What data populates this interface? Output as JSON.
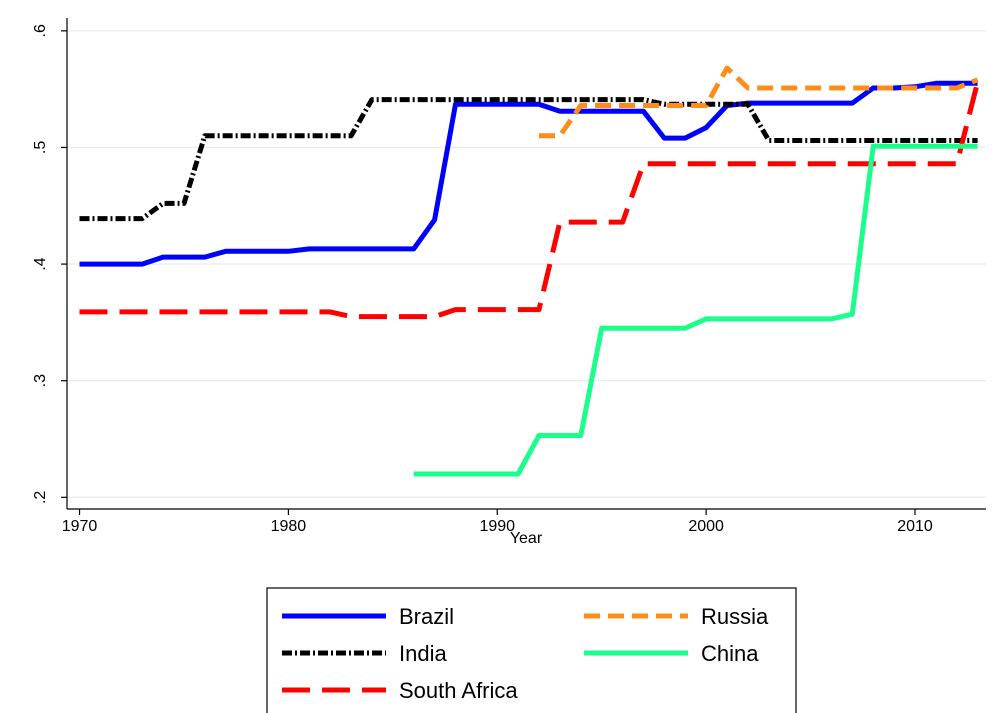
{
  "chart_data": {
    "type": "line",
    "title": "",
    "xlabel": "Year",
    "ylabel": "",
    "xlim": [
      1969.4,
      2013.4
    ],
    "ylim": [
      0.19,
      0.611
    ],
    "x_ticks": [
      1970,
      1980,
      1990,
      2000,
      2010
    ],
    "x_tick_labels": [
      "1970",
      "1980",
      "1990",
      "2000",
      "2010"
    ],
    "y_ticks": [
      0.2,
      0.3,
      0.4,
      0.5,
      0.6
    ],
    "y_tick_labels": [
      ".2",
      ".3",
      ".4",
      ".5",
      ".6"
    ],
    "grid": "horizontal",
    "legend_position": "bottom",
    "series": [
      {
        "name": "Brazil",
        "color": "#0000ff",
        "dash": "solid",
        "x": [
          1970,
          1971,
          1972,
          1973,
          1974,
          1975,
          1976,
          1977,
          1978,
          1979,
          1980,
          1981,
          1982,
          1983,
          1984,
          1985,
          1986,
          1987,
          1988,
          1989,
          1990,
          1991,
          1992,
          1993,
          1994,
          1995,
          1996,
          1997,
          1998,
          1999,
          2000,
          2001,
          2002,
          2003,
          2004,
          2005,
          2006,
          2007,
          2008,
          2009,
          2010,
          2011,
          2012,
          2013
        ],
        "y": [
          0.4,
          0.4,
          0.4,
          0.4,
          0.406,
          0.406,
          0.406,
          0.411,
          0.411,
          0.411,
          0.411,
          0.413,
          0.413,
          0.413,
          0.413,
          0.413,
          0.413,
          0.438,
          0.537,
          0.537,
          0.537,
          0.537,
          0.537,
          0.531,
          0.531,
          0.531,
          0.531,
          0.531,
          0.508,
          0.508,
          0.517,
          0.536,
          0.538,
          0.538,
          0.538,
          0.538,
          0.538,
          0.538,
          0.551,
          0.551,
          0.552,
          0.555,
          0.555,
          0.555
        ]
      },
      {
        "name": "India",
        "color": "#000000",
        "dash": "dashdot",
        "x": [
          1970,
          1971,
          1972,
          1973,
          1974,
          1975,
          1976,
          1977,
          1978,
          1979,
          1980,
          1981,
          1982,
          1983,
          1984,
          1985,
          1986,
          1987,
          1988,
          1989,
          1990,
          1991,
          1992,
          1993,
          1994,
          1995,
          1996,
          1997,
          1998,
          1999,
          2000,
          2001,
          2002,
          2003,
          2004,
          2005,
          2006,
          2007,
          2008,
          2009,
          2010,
          2011,
          2012,
          2013
        ],
        "y": [
          0.439,
          0.439,
          0.439,
          0.439,
          0.452,
          0.452,
          0.51,
          0.51,
          0.51,
          0.51,
          0.51,
          0.51,
          0.51,
          0.51,
          0.541,
          0.541,
          0.541,
          0.541,
          0.541,
          0.541,
          0.541,
          0.541,
          0.541,
          0.541,
          0.541,
          0.541,
          0.541,
          0.541,
          0.537,
          0.537,
          0.537,
          0.537,
          0.537,
          0.506,
          0.506,
          0.506,
          0.506,
          0.506,
          0.506,
          0.506,
          0.506,
          0.506,
          0.506,
          0.506
        ]
      },
      {
        "name": "South Africa",
        "color": "#ff0000",
        "dash": "longdash",
        "x": [
          1970,
          1971,
          1972,
          1973,
          1974,
          1975,
          1976,
          1977,
          1978,
          1979,
          1980,
          1981,
          1982,
          1983,
          1984,
          1985,
          1986,
          1987,
          1988,
          1989,
          1990,
          1991,
          1992,
          1993,
          1994,
          1995,
          1996,
          1997,
          1998,
          1999,
          2000,
          2001,
          2002,
          2003,
          2004,
          2005,
          2006,
          2007,
          2008,
          2009,
          2010,
          2011,
          2012,
          2013
        ],
        "y": [
          0.359,
          0.359,
          0.359,
          0.359,
          0.359,
          0.359,
          0.359,
          0.359,
          0.359,
          0.359,
          0.359,
          0.359,
          0.359,
          0.355,
          0.355,
          0.355,
          0.355,
          0.355,
          0.361,
          0.361,
          0.361,
          0.361,
          0.361,
          0.436,
          0.436,
          0.436,
          0.436,
          0.486,
          0.486,
          0.486,
          0.486,
          0.486,
          0.486,
          0.486,
          0.486,
          0.486,
          0.486,
          0.486,
          0.486,
          0.486,
          0.486,
          0.486,
          0.486,
          0.556
        ]
      },
      {
        "name": "Russia",
        "color": "#ff8c1a",
        "dash": "dash",
        "x": [
          1992,
          1993,
          1994,
          1995,
          1996,
          1997,
          1998,
          1999,
          2000,
          2001,
          2002,
          2003,
          2004,
          2005,
          2006,
          2007,
          2008,
          2009,
          2010,
          2011,
          2012,
          2013
        ],
        "y": [
          0.51,
          0.51,
          0.536,
          0.536,
          0.536,
          0.536,
          0.536,
          0.536,
          0.536,
          0.568,
          0.551,
          0.551,
          0.551,
          0.551,
          0.551,
          0.551,
          0.551,
          0.551,
          0.551,
          0.551,
          0.551,
          0.558
        ]
      },
      {
        "name": "China",
        "color": "#1aff8c",
        "dash": "solid",
        "x": [
          1986,
          1987,
          1988,
          1989,
          1990,
          1991,
          1992,
          1993,
          1994,
          1995,
          1996,
          1997,
          1998,
          1999,
          2000,
          2001,
          2002,
          2003,
          2004,
          2005,
          2006,
          2007,
          2008,
          2009,
          2010,
          2011,
          2012,
          2013
        ],
        "y": [
          0.22,
          0.22,
          0.22,
          0.22,
          0.22,
          0.22,
          0.253,
          0.253,
          0.253,
          0.345,
          0.345,
          0.345,
          0.345,
          0.345,
          0.353,
          0.353,
          0.353,
          0.353,
          0.353,
          0.353,
          0.353,
          0.357,
          0.501,
          0.501,
          0.501,
          0.501,
          0.501,
          0.501
        ]
      }
    ],
    "legend_order": [
      "Brazil",
      "Russia",
      "India",
      "China",
      "South Africa"
    ]
  }
}
